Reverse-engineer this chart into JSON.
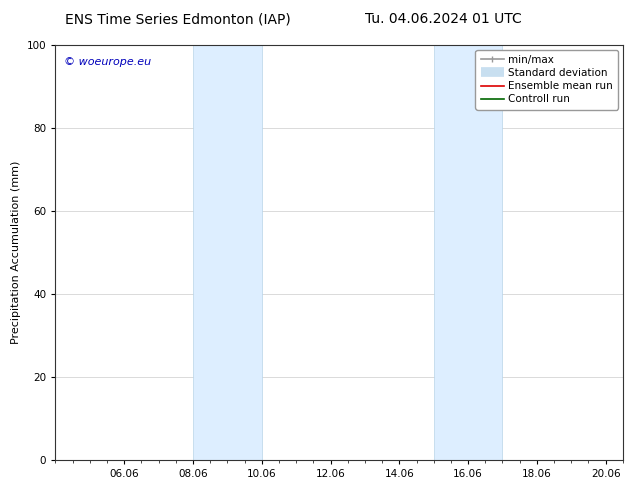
{
  "title_left": "ENS Time Series Edmonton (IAP)",
  "title_right": "Tu. 04.06.2024 01 UTC",
  "ylabel": "Precipitation Accumulation (mm)",
  "watermark": "© woeurope.eu",
  "ylim": [
    0,
    100
  ],
  "yticks": [
    0,
    20,
    40,
    60,
    80,
    100
  ],
  "xlim": [
    0,
    16
  ],
  "xtick_positions": [
    2,
    4,
    6,
    8,
    10,
    12,
    14,
    16
  ],
  "xtick_labels": [
    "06.06",
    "08.06",
    "10.06",
    "12.06",
    "14.06",
    "16.06",
    "18.06",
    "20.06"
  ],
  "shaded_bands": [
    {
      "start": 4,
      "end": 6
    },
    {
      "start": 11,
      "end": 13
    }
  ],
  "band_color": "#ddeeff",
  "band_edge_color": "#b8d4e8",
  "bg_color": "#ffffff",
  "legend_items": [
    {
      "label": "min/max",
      "color": "#999999",
      "lw": 1.2
    },
    {
      "label": "Standard deviation",
      "color": "#c8dff0",
      "lw": 7
    },
    {
      "label": "Ensemble mean run",
      "color": "#dd0000",
      "lw": 1.2
    },
    {
      "label": "Controll run",
      "color": "#006600",
      "lw": 1.2
    }
  ],
  "watermark_color": "#0000bb",
  "title_fontsize": 10,
  "axis_label_fontsize": 8,
  "tick_fontsize": 7.5,
  "legend_fontsize": 7.5
}
